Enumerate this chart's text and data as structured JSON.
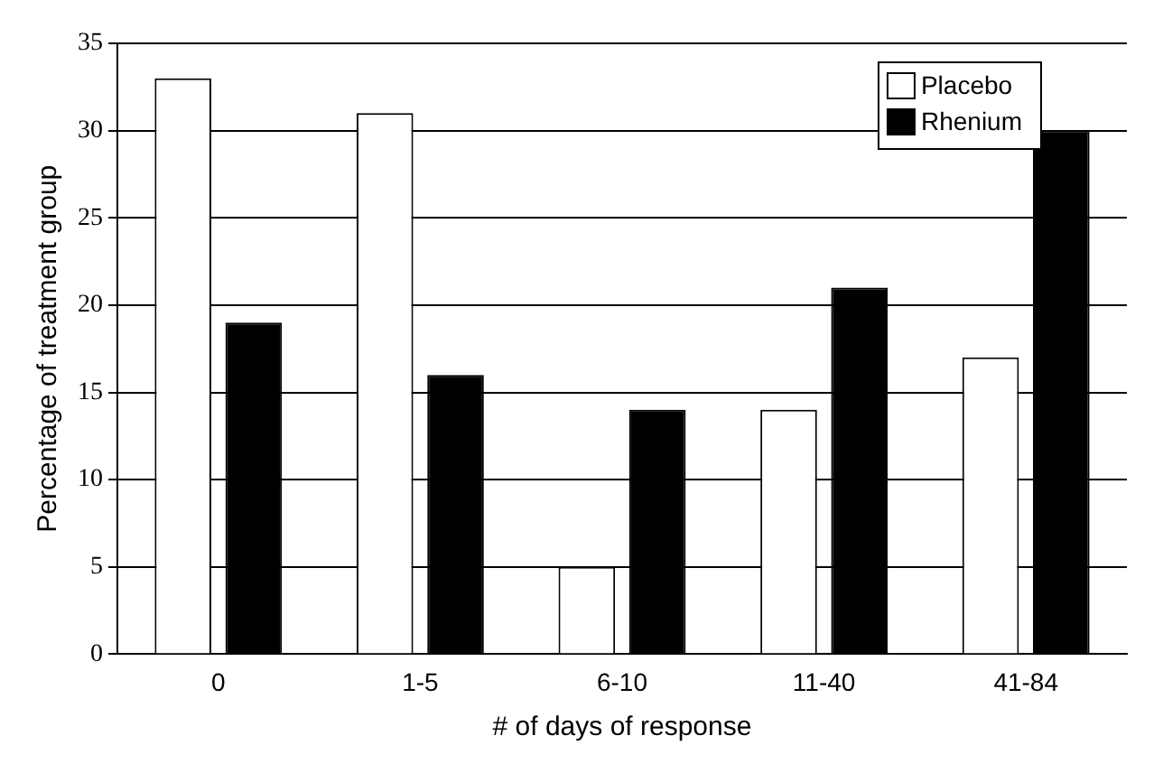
{
  "chart_data": {
    "type": "bar",
    "xlabel": "# of days of response",
    "ylabel": "Percentage of treatment group",
    "categories": [
      "0",
      "1-5",
      "6-10",
      "11-40",
      "41-84"
    ],
    "series": [
      {
        "name": "Placebo",
        "color": "#ffffff",
        "values": [
          33,
          31,
          5,
          14,
          17
        ]
      },
      {
        "name": "Rhenium",
        "color": "#000000",
        "values": [
          19,
          16,
          14,
          21,
          30
        ]
      }
    ],
    "ylim": [
      0,
      35
    ],
    "yticks": [
      0,
      5,
      10,
      15,
      20,
      25,
      30,
      35
    ],
    "grid": "y",
    "legend": "top right"
  }
}
